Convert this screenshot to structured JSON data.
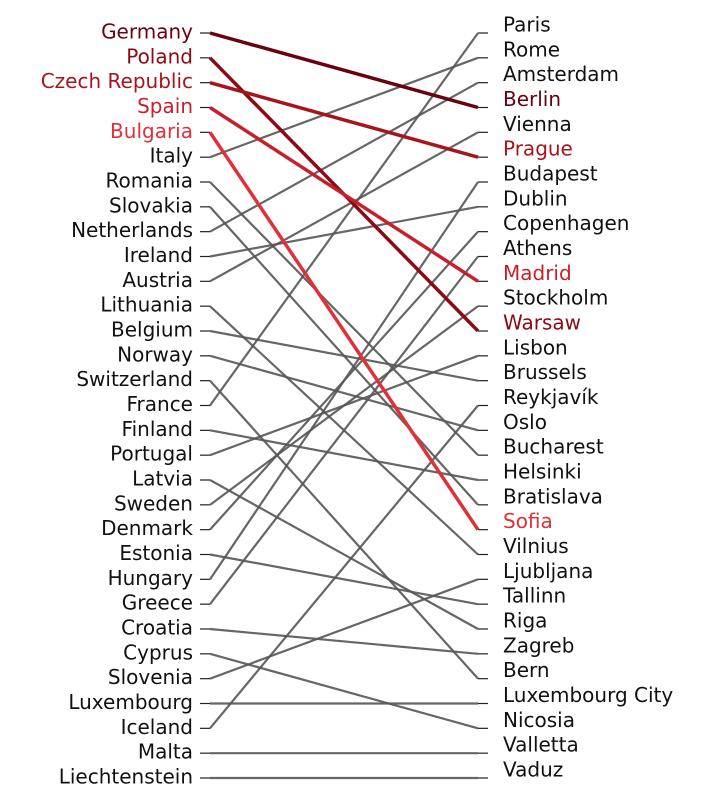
{
  "chart_data": {
    "type": "slope",
    "countries": [
      "Germany",
      "Poland",
      "Czech Republic",
      "Spain",
      "Bulgaria",
      "Italy",
      "Romania",
      "Slovakia",
      "Netherlands",
      "Ireland",
      "Austria",
      "Lithuania",
      "Belgium",
      "Norway",
      "Switzerland",
      "France",
      "Finland",
      "Portugal",
      "Latvia",
      "Sweden",
      "Denmark",
      "Estonia",
      "Hungary",
      "Greece",
      "Croatia",
      "Cyprus",
      "Slovenia",
      "Luxembourg",
      "Iceland",
      "Malta",
      "Liechtenstein"
    ],
    "capitals": [
      "Paris",
      "Rome",
      "Amsterdam",
      "Berlin",
      "Vienna",
      "Prague",
      "Budapest",
      "Dublin",
      "Copenhagen",
      "Athens",
      "Madrid",
      "Stockholm",
      "Warsaw",
      "Lisbon",
      "Brussels",
      "Reykjavík",
      "Oslo",
      "Bucharest",
      "Helsinki",
      "Bratislava",
      "Sofia",
      "Vilnius",
      "Ljubljana",
      "Tallinn",
      "Riga",
      "Zagreb",
      "Bern",
      "Luxembourg City",
      "Nicosia",
      "Valletta",
      "Vaduz"
    ],
    "links": [
      {
        "from": 0,
        "to": 3,
        "color": "#6b0010",
        "highlight": true
      },
      {
        "from": 1,
        "to": 12,
        "color": "#8b0a14",
        "highlight": true
      },
      {
        "from": 2,
        "to": 5,
        "color": "#a8141c",
        "highlight": true
      },
      {
        "from": 3,
        "to": 10,
        "color": "#c8202a",
        "highlight": true
      },
      {
        "from": 4,
        "to": 20,
        "color": "#e03038",
        "highlight": true
      },
      {
        "from": 5,
        "to": 1,
        "color": "#555555"
      },
      {
        "from": 6,
        "to": 17,
        "color": "#555555"
      },
      {
        "from": 7,
        "to": 19,
        "color": "#555555"
      },
      {
        "from": 8,
        "to": 2,
        "color": "#555555"
      },
      {
        "from": 9,
        "to": 7,
        "color": "#555555"
      },
      {
        "from": 10,
        "to": 4,
        "color": "#555555"
      },
      {
        "from": 11,
        "to": 21,
        "color": "#555555"
      },
      {
        "from": 12,
        "to": 14,
        "color": "#555555"
      },
      {
        "from": 13,
        "to": 16,
        "color": "#555555"
      },
      {
        "from": 14,
        "to": 26,
        "color": "#555555"
      },
      {
        "from": 15,
        "to": 0,
        "color": "#555555"
      },
      {
        "from": 16,
        "to": 18,
        "color": "#555555"
      },
      {
        "from": 17,
        "to": 13,
        "color": "#555555"
      },
      {
        "from": 18,
        "to": 24,
        "color": "#555555"
      },
      {
        "from": 19,
        "to": 11,
        "color": "#555555"
      },
      {
        "from": 20,
        "to": 8,
        "color": "#555555"
      },
      {
        "from": 21,
        "to": 23,
        "color": "#555555"
      },
      {
        "from": 22,
        "to": 6,
        "color": "#555555"
      },
      {
        "from": 23,
        "to": 9,
        "color": "#555555"
      },
      {
        "from": 24,
        "to": 25,
        "color": "#555555"
      },
      {
        "from": 25,
        "to": 28,
        "color": "#555555"
      },
      {
        "from": 26,
        "to": 22,
        "color": "#555555"
      },
      {
        "from": 27,
        "to": 27,
        "color": "#555555"
      },
      {
        "from": 28,
        "to": 15,
        "color": "#555555"
      },
      {
        "from": 29,
        "to": 29,
        "color": "#555555"
      },
      {
        "from": 30,
        "to": 30,
        "color": "#555555"
      }
    ]
  }
}
